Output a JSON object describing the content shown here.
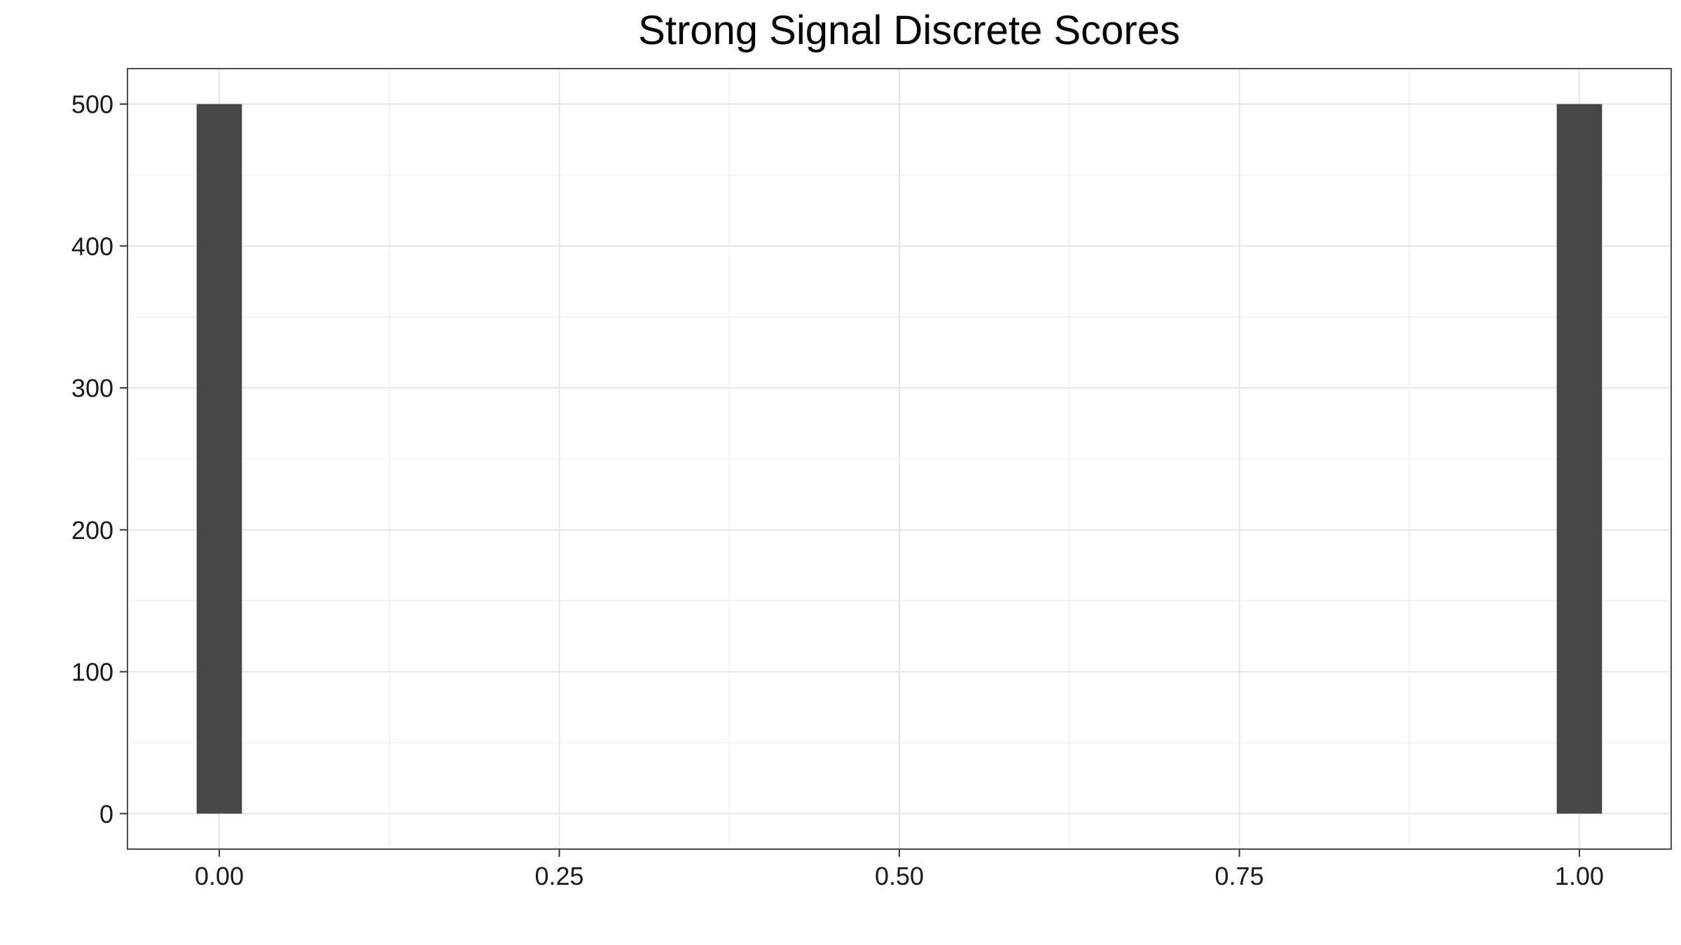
{
  "chart_data": {
    "type": "bar",
    "title": "Strong Signal Discrete Scores",
    "xlabel": "",
    "ylabel": "",
    "x": [
      0.0,
      1.0
    ],
    "values": [
      500,
      500
    ],
    "bin_width": 0.0333,
    "xlim": [
      -0.0675,
      1.0675
    ],
    "ylim": [
      -25,
      525
    ],
    "x_ticks": [
      0,
      0.25,
      0.5,
      0.75,
      1
    ],
    "x_tick_labels": [
      "0.00",
      "0.25",
      "0.50",
      "0.75",
      "1.00"
    ],
    "y_ticks": [
      0,
      100,
      200,
      300,
      400,
      500
    ],
    "y_tick_labels": [
      "0",
      "100",
      "200",
      "300",
      "400",
      "500"
    ],
    "grid": true,
    "legend": "none",
    "colors": {
      "bar": "#474747",
      "grid_major": "#e3e3e3",
      "grid_minor": "#f2f2f2",
      "panel_border": "#4d4d4d",
      "background": "#ffffff"
    }
  }
}
